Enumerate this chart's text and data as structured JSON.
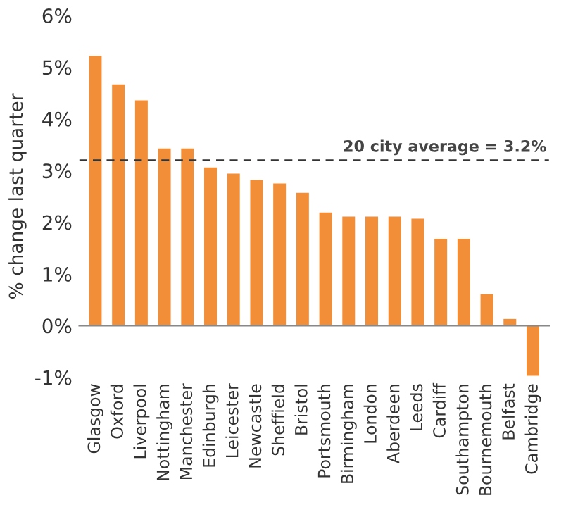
{
  "chart_data": {
    "type": "bar",
    "ylabel": "% change last quarter",
    "categories": [
      "Glasgow",
      "Oxford",
      "Liverpool",
      "Nottingham",
      "Manchester",
      "Edinburgh",
      "Leicester",
      "Newcastle",
      "Sheffield",
      "Bristol",
      "Portsmouth",
      "Birmingham",
      "London",
      "Aberdeen",
      "Leeds",
      "Cardiff",
      "Southampton",
      "Bournemouth",
      "Belfast",
      "Cambridge"
    ],
    "values": [
      5.22,
      4.67,
      4.36,
      3.43,
      3.43,
      3.06,
      2.94,
      2.82,
      2.75,
      2.57,
      2.19,
      2.11,
      2.11,
      2.11,
      2.07,
      1.68,
      1.68,
      0.61,
      0.13,
      -0.97
    ],
    "color": "#f28e38",
    "ylim": [
      -1,
      6
    ],
    "yticks": [
      {
        "value": -1,
        "label": "-1%"
      },
      {
        "value": 0,
        "label": "0%"
      },
      {
        "value": 1,
        "label": "1%"
      },
      {
        "value": 2,
        "label": "2%"
      },
      {
        "value": 3,
        "label": "3%"
      },
      {
        "value": 4,
        "label": "4%"
      },
      {
        "value": 5,
        "label": "5%"
      },
      {
        "value": 6,
        "label": "6%"
      }
    ],
    "ref_lines": [
      {
        "axis": "y",
        "value": 3.2,
        "label": "20 city average = 3.2%",
        "color": "#333333",
        "line_style": "dashed"
      }
    ],
    "legend": false
  }
}
